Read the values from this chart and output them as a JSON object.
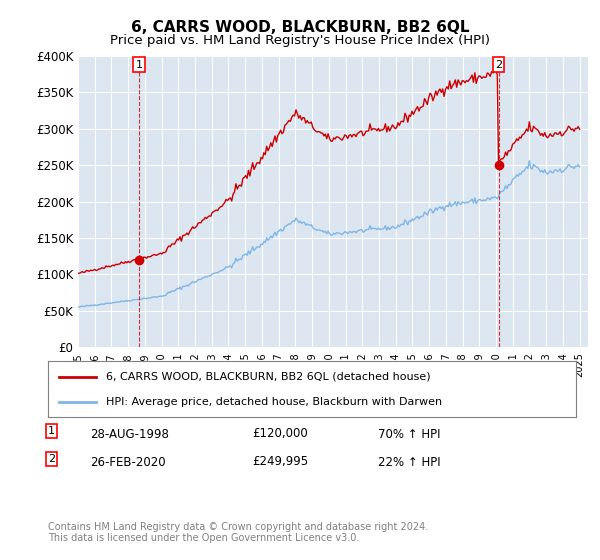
{
  "title": "6, CARRS WOOD, BLACKBURN, BB2 6QL",
  "subtitle": "Price paid vs. HM Land Registry's House Price Index (HPI)",
  "xlabel": "",
  "ylabel": "",
  "ylim": [
    0,
    400000
  ],
  "yticks": [
    0,
    50000,
    100000,
    150000,
    200000,
    250000,
    300000,
    350000,
    400000
  ],
  "ytick_labels": [
    "£0",
    "£50K",
    "£100K",
    "£150K",
    "£200K",
    "£250K",
    "£300K",
    "£350K",
    "£400K"
  ],
  "background_color": "#dce6f1",
  "plot_bg_color": "#dce6f1",
  "hpi_line_color": "#7eb6e6",
  "price_line_color": "#cc0000",
  "transaction1_date": "28-AUG-1998",
  "transaction1_price": 120000,
  "transaction1_label": "70% ↑ HPI",
  "transaction1_vline_x": 1998.65,
  "transaction2_date": "26-FEB-2020",
  "transaction2_price": 249995,
  "transaction2_label": "22% ↑ HPI",
  "transaction2_vline_x": 2020.15,
  "legend_line1": "6, CARRS WOOD, BLACKBURN, BB2 6QL (detached house)",
  "legend_line2": "HPI: Average price, detached house, Blackburn with Darwen",
  "footer": "Contains HM Land Registry data © Crown copyright and database right 2024.\nThis data is licensed under the Open Government Licence v3.0.",
  "title_fontsize": 11,
  "subtitle_fontsize": 9.5,
  "tick_fontsize": 8.5
}
